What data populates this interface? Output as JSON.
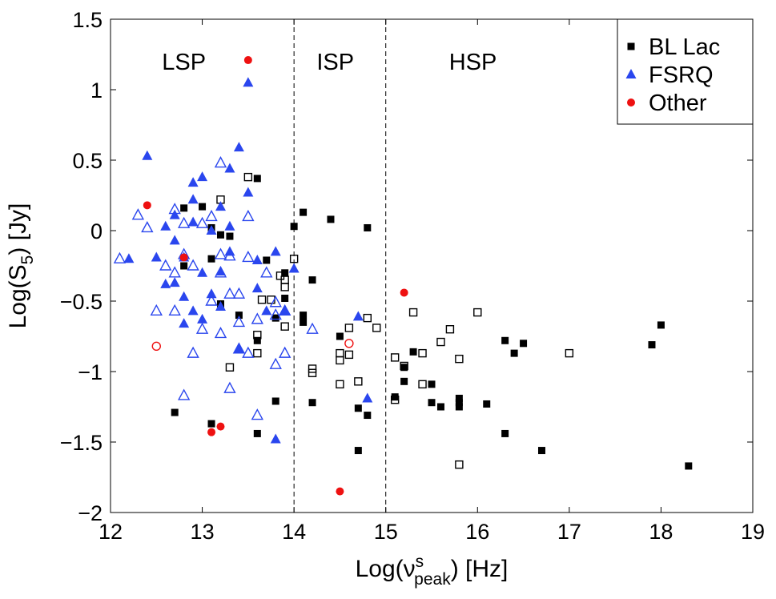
{
  "chart_data": {
    "type": "scatter",
    "title": "",
    "xlabel": {
      "pre": "Log(ν",
      "sup": "s",
      "sub": "peak",
      "post": ") [Hz]"
    },
    "ylabel": {
      "pre": "Log(S",
      "sub": "5",
      "post": ") [Jy]"
    },
    "xlim": [
      12,
      19
    ],
    "ylim": [
      -2,
      1.5
    ],
    "xticks": [
      12,
      13,
      14,
      15,
      16,
      17,
      18,
      19
    ],
    "yticks": [
      -2,
      -1.5,
      -1,
      -0.5,
      0,
      0.5,
      1,
      1.5
    ],
    "ytick_labels": [
      "−2",
      "−1.5",
      "−1",
      "−0.5",
      "0",
      "0.5",
      "1",
      "1.5"
    ],
    "grid": false,
    "legend_position": "top-right",
    "vlines": [
      14,
      15
    ],
    "regions": [
      {
        "label": "LSP",
        "x": 12.8,
        "y": 1.2
      },
      {
        "label": "ISP",
        "x": 14.45,
        "y": 1.2
      },
      {
        "label": "HSP",
        "x": 15.95,
        "y": 1.2
      }
    ],
    "series": [
      {
        "name": "BL Lac",
        "marker": "square",
        "color": "#000000",
        "filled": [
          [
            12.7,
            -1.29
          ],
          [
            12.8,
            0.16
          ],
          [
            12.8,
            -0.25
          ],
          [
            13.0,
            0.17
          ],
          [
            13.1,
            0.02
          ],
          [
            13.1,
            -0.2
          ],
          [
            13.1,
            -1.37
          ],
          [
            13.2,
            -0.03
          ],
          [
            13.2,
            -0.52
          ],
          [
            13.3,
            -0.04
          ],
          [
            13.4,
            -0.6
          ],
          [
            13.6,
            0.37
          ],
          [
            13.6,
            -0.78
          ],
          [
            13.6,
            -1.44
          ],
          [
            13.7,
            -0.21
          ],
          [
            13.8,
            -0.62
          ],
          [
            13.8,
            -1.21
          ],
          [
            13.9,
            -0.3
          ],
          [
            13.9,
            -0.48
          ],
          [
            14.0,
            0.03
          ],
          [
            14.1,
            0.13
          ],
          [
            14.1,
            -0.6
          ],
          [
            14.1,
            -0.65
          ],
          [
            14.2,
            -0.35
          ],
          [
            14.2,
            -1.22
          ],
          [
            14.4,
            0.08
          ],
          [
            14.5,
            -0.75
          ],
          [
            14.7,
            -1.26
          ],
          [
            14.7,
            -1.56
          ],
          [
            14.8,
            0.02
          ],
          [
            14.8,
            -1.31
          ],
          [
            15.1,
            -1.18
          ],
          [
            15.2,
            -0.97
          ],
          [
            15.2,
            -1.07
          ],
          [
            15.3,
            -0.86
          ],
          [
            15.5,
            -1.09
          ],
          [
            15.5,
            -1.22
          ],
          [
            15.6,
            -1.25
          ],
          [
            15.8,
            -1.19
          ],
          [
            15.8,
            -1.22
          ],
          [
            15.8,
            -1.25
          ],
          [
            16.1,
            -1.23
          ],
          [
            16.3,
            -0.78
          ],
          [
            16.3,
            -1.44
          ],
          [
            16.4,
            -0.87
          ],
          [
            16.5,
            -0.8
          ],
          [
            16.7,
            -1.56
          ],
          [
            17.9,
            -0.81
          ],
          [
            18.0,
            -0.67
          ],
          [
            18.3,
            -1.67
          ]
        ],
        "open": [
          [
            13.2,
            0.22
          ],
          [
            13.3,
            -0.97
          ],
          [
            13.5,
            0.38
          ],
          [
            13.6,
            -0.74
          ],
          [
            13.6,
            -0.87
          ],
          [
            13.65,
            -0.49
          ],
          [
            13.75,
            -0.49
          ],
          [
            13.85,
            -0.32
          ],
          [
            13.9,
            -0.35
          ],
          [
            13.9,
            -0.4
          ],
          [
            13.9,
            -0.68
          ],
          [
            14.0,
            -0.2
          ],
          [
            14.2,
            -0.98
          ],
          [
            14.2,
            -1.01
          ],
          [
            14.5,
            -0.87
          ],
          [
            14.5,
            -0.92
          ],
          [
            14.5,
            -1.09
          ],
          [
            14.6,
            -0.69
          ],
          [
            14.6,
            -0.88
          ],
          [
            14.7,
            -1.07
          ],
          [
            14.8,
            -0.62
          ],
          [
            14.9,
            -0.69
          ],
          [
            15.1,
            -0.9
          ],
          [
            15.1,
            -1.2
          ],
          [
            15.2,
            -0.96
          ],
          [
            15.3,
            -0.58
          ],
          [
            15.4,
            -0.87
          ],
          [
            15.4,
            -1.09
          ],
          [
            15.6,
            -0.79
          ],
          [
            15.7,
            -0.7
          ],
          [
            15.8,
            -0.91
          ],
          [
            15.8,
            -1.66
          ],
          [
            16.0,
            -0.58
          ],
          [
            17.0,
            -0.87
          ]
        ]
      },
      {
        "name": "FSRQ",
        "marker": "triangle",
        "color": "#2a46ee",
        "filled": [
          [
            12.2,
            -0.2
          ],
          [
            12.4,
            0.53
          ],
          [
            12.5,
            -0.19
          ],
          [
            12.6,
            0.03
          ],
          [
            12.6,
            -0.38
          ],
          [
            12.7,
            0.11
          ],
          [
            12.7,
            -0.07
          ],
          [
            12.7,
            -0.37
          ],
          [
            12.8,
            -0.19
          ],
          [
            12.8,
            -0.47
          ],
          [
            12.8,
            -0.66
          ],
          [
            12.9,
            0.06
          ],
          [
            12.9,
            -0.57
          ],
          [
            12.9,
            0.34
          ],
          [
            12.9,
            0.22
          ],
          [
            13.0,
            -0.3
          ],
          [
            13.0,
            -0.63
          ],
          [
            13.0,
            0.38
          ],
          [
            13.1,
            0.0
          ],
          [
            13.1,
            -0.45
          ],
          [
            13.2,
            0.17
          ],
          [
            13.2,
            -0.29
          ],
          [
            13.2,
            -0.54
          ],
          [
            13.3,
            0.44
          ],
          [
            13.3,
            0.03
          ],
          [
            13.3,
            -0.15
          ],
          [
            13.4,
            0.59
          ],
          [
            13.4,
            -0.84
          ],
          [
            13.5,
            1.05
          ],
          [
            13.5,
            0.27
          ],
          [
            13.6,
            -0.41
          ],
          [
            13.6,
            -0.21
          ],
          [
            13.7,
            -0.57
          ],
          [
            13.8,
            -0.15
          ],
          [
            13.8,
            -1.48
          ],
          [
            13.9,
            -0.57
          ],
          [
            14.0,
            -0.27
          ],
          [
            14.7,
            -0.61
          ],
          [
            14.8,
            -1.19
          ]
        ],
        "open": [
          [
            12.1,
            -0.2
          ],
          [
            12.3,
            0.11
          ],
          [
            12.4,
            0.02
          ],
          [
            12.5,
            -0.57
          ],
          [
            12.6,
            -0.25
          ],
          [
            12.7,
            0.15
          ],
          [
            12.7,
            -0.3
          ],
          [
            12.7,
            -0.57
          ],
          [
            12.8,
            -1.17
          ],
          [
            12.8,
            0.05
          ],
          [
            12.8,
            -0.17
          ],
          [
            12.9,
            -0.87
          ],
          [
            12.9,
            -0.25
          ],
          [
            13.0,
            0.05
          ],
          [
            13.0,
            -0.7
          ],
          [
            13.1,
            0.1
          ],
          [
            13.1,
            -0.5
          ],
          [
            13.2,
            0.48
          ],
          [
            13.2,
            -0.17
          ],
          [
            13.2,
            -0.3
          ],
          [
            13.2,
            -0.73
          ],
          [
            13.3,
            -0.45
          ],
          [
            13.3,
            -1.12
          ],
          [
            13.3,
            -0.18
          ],
          [
            13.4,
            -0.45
          ],
          [
            13.4,
            -0.65
          ],
          [
            13.4,
            -0.84
          ],
          [
            13.5,
            0.1
          ],
          [
            13.5,
            -0.87
          ],
          [
            13.5,
            -0.19
          ],
          [
            13.6,
            -1.31
          ],
          [
            13.6,
            -0.63
          ],
          [
            13.7,
            -0.3
          ],
          [
            13.8,
            -0.51
          ],
          [
            13.8,
            -0.95
          ],
          [
            13.8,
            -0.6
          ],
          [
            13.9,
            -0.87
          ],
          [
            13.9,
            -0.57
          ],
          [
            14.2,
            -0.7
          ]
        ]
      },
      {
        "name": "Other",
        "marker": "circle",
        "color": "#ee1111",
        "filled": [
          [
            12.4,
            0.18
          ],
          [
            12.8,
            -0.19
          ],
          [
            13.1,
            -1.43
          ],
          [
            13.2,
            -1.39
          ],
          [
            13.5,
            1.21
          ],
          [
            14.5,
            -1.85
          ],
          [
            15.2,
            -0.44
          ]
        ],
        "open": [
          [
            12.5,
            -0.82
          ],
          [
            14.6,
            -0.8
          ]
        ]
      }
    ]
  }
}
